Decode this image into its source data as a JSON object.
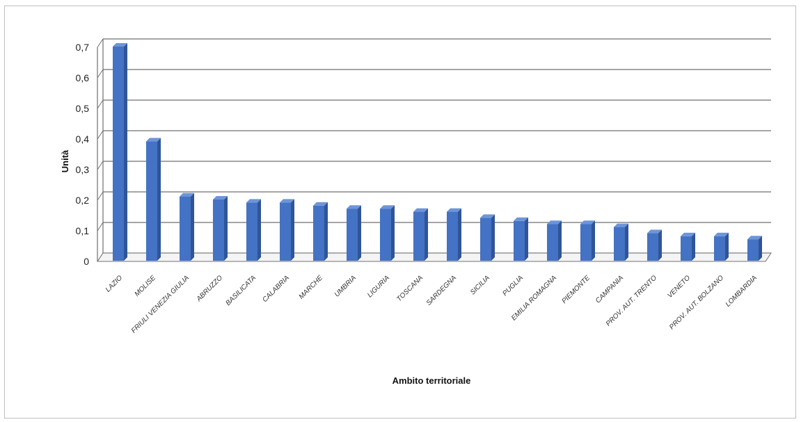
{
  "chart_data": {
    "type": "bar",
    "title": "",
    "xlabel": "Ambito territoriale",
    "ylabel": "Unità",
    "ylim": [
      0,
      0.7
    ],
    "yticks": [
      "0",
      "0,1",
      "0,2",
      "0,3",
      "0,4",
      "0,5",
      "0,6",
      "0,7"
    ],
    "grid": true,
    "style": "3d-column",
    "colors": {
      "bar_front": "#4472c4",
      "bar_side": "#2f5597",
      "bar_top": "#6d95d8",
      "grid": "#6f6f6f"
    },
    "categories": [
      "LAZIO",
      "MOLISE",
      "FRIULI VENEZIA GIULIA",
      "ABRUZZO",
      "BASILICATA",
      "CALABRIA",
      "MARCHE",
      "UMBRIA",
      "LIGURIA",
      "TOSCANA",
      "SARDEGNA",
      "SICILIA",
      "PUGLIA",
      "EMILIA ROMAGNA",
      "PIEMONTE",
      "CAMPANIA",
      "PROV. AUT. TRENTO",
      "VENETO",
      "PROV. AUT. BOLZANO",
      "LOMBARDIA"
    ],
    "values": [
      0.7,
      0.39,
      0.21,
      0.2,
      0.19,
      0.19,
      0.18,
      0.17,
      0.17,
      0.16,
      0.16,
      0.14,
      0.13,
      0.12,
      0.12,
      0.11,
      0.09,
      0.08,
      0.08,
      0.07
    ]
  }
}
